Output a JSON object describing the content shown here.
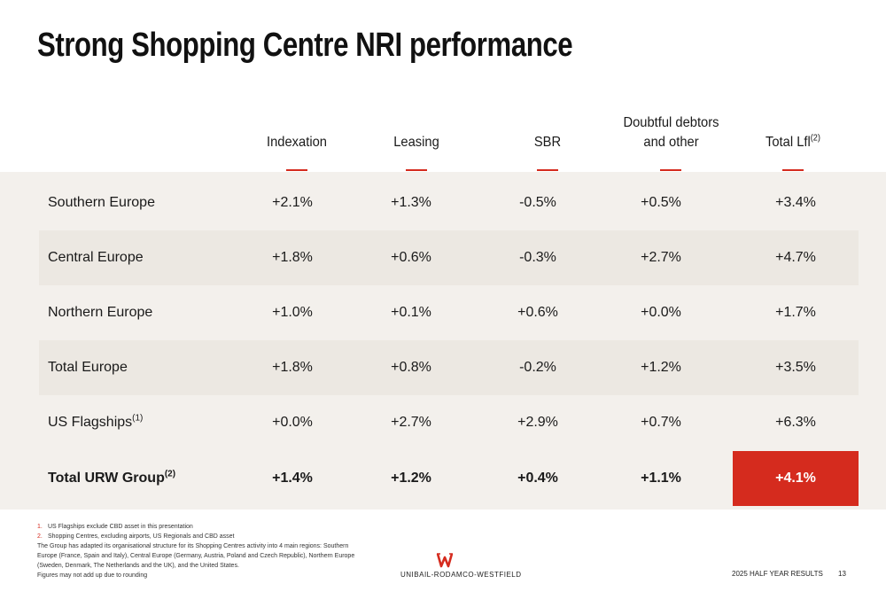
{
  "title": "Strong Shopping Centre NRI performance",
  "columns": [
    {
      "line1": "",
      "line2": "Indexation",
      "sup": ""
    },
    {
      "line1": "",
      "line2": "Leasing",
      "sup": ""
    },
    {
      "line1": "",
      "line2": "SBR",
      "sup": ""
    },
    {
      "line1": "Doubtful debtors",
      "line2": "and other",
      "sup": ""
    },
    {
      "line1": "",
      "line2": "Total Lfl",
      "sup": "(2)"
    }
  ],
  "rows": [
    {
      "label": "Southern Europe",
      "sup": "",
      "values": [
        "+2.1%",
        "+1.3%",
        "-0.5%",
        "+0.5%",
        "+3.4%"
      ]
    },
    {
      "label": "Central Europe",
      "sup": "",
      "values": [
        "+1.8%",
        "+0.6%",
        "-0.3%",
        "+2.7%",
        "+4.7%"
      ]
    },
    {
      "label": "Northern Europe",
      "sup": "",
      "values": [
        "+1.0%",
        "+0.1%",
        "+0.6%",
        "+0.0%",
        "+1.7%"
      ]
    },
    {
      "label": "Total Europe",
      "sup": "",
      "values": [
        "+1.8%",
        "+0.8%",
        "-0.2%",
        "+1.2%",
        "+3.5%"
      ]
    },
    {
      "label": "US Flagships",
      "sup": "(1)",
      "values": [
        "+0.0%",
        "+2.7%",
        "+2.9%",
        "+0.7%",
        "+6.3%"
      ]
    },
    {
      "label": "Total URW Group",
      "sup": "(2)",
      "values": [
        "+1.4%",
        "+1.2%",
        "+0.4%",
        "+1.1%",
        "+4.1%"
      ]
    }
  ],
  "notes": {
    "fn1_num": "1.",
    "fn1": "US Flagships exclude CBD asset in this presentation",
    "fn2_num": "2.",
    "fn2": "Shopping Centres, excluding airports, US Regionals and CBD asset",
    "body": "The Group has adapted its organisational structure for its Shopping Centres activity into 4 main regions: Southern Europe (France, Spain and Italy), Central Europe (Germany, Austria, Poland and Czech Republic), Northern Europe (Sweden, Denmark, The Netherlands and the UK), and the United States.",
    "rounding": "Figures may not add up due to rounding"
  },
  "logo_text": "UNIBAIL-RODAMCO-WESTFIELD",
  "footer": {
    "label": "2025 HALF YEAR RESULTS",
    "page": "13"
  },
  "colors": {
    "accent": "#d52b1e",
    "band": "#f3f0ec",
    "alt_row": "#ece8e2"
  }
}
